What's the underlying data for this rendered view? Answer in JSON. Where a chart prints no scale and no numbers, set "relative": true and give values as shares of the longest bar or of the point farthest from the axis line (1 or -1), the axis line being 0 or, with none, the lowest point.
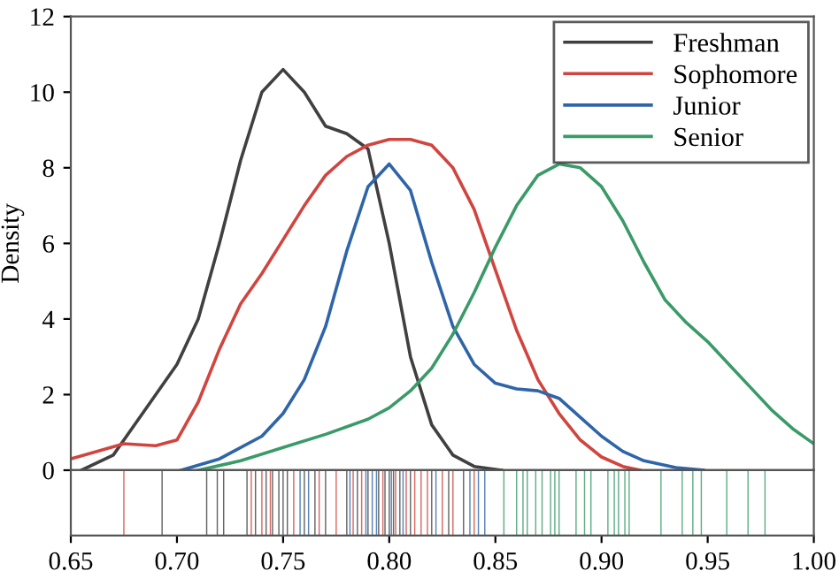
{
  "chart_data": [
    {
      "type": "line",
      "ylabel": "Density",
      "xlim": [
        0.65,
        1.0
      ],
      "ylim": [
        0,
        12
      ],
      "yticks": [
        0,
        2,
        4,
        6,
        8,
        10,
        12
      ],
      "tick_labels": "y",
      "legend": "top right",
      "grid": false,
      "series": [
        {
          "name": "Freshman",
          "color": "#404040",
          "x": [
            0.655,
            0.67,
            0.69,
            0.7,
            0.71,
            0.72,
            0.73,
            0.74,
            0.75,
            0.76,
            0.77,
            0.78,
            0.79,
            0.8,
            0.81,
            0.82,
            0.83,
            0.84,
            0.853
          ],
          "values": [
            0,
            0.4,
            2.0,
            2.8,
            4.0,
            6.0,
            8.2,
            10.0,
            10.6,
            10.0,
            9.1,
            8.9,
            8.5,
            6.0,
            3.0,
            1.2,
            0.4,
            0.1,
            0
          ]
        },
        {
          "name": "Sophomore",
          "color": "#d0453f",
          "x": [
            0.65,
            0.675,
            0.69,
            0.7,
            0.71,
            0.72,
            0.73,
            0.74,
            0.75,
            0.76,
            0.77,
            0.78,
            0.79,
            0.8,
            0.81,
            0.82,
            0.83,
            0.84,
            0.85,
            0.86,
            0.87,
            0.88,
            0.89,
            0.9,
            0.91,
            0.918
          ],
          "values": [
            0.3,
            0.7,
            0.65,
            0.8,
            1.8,
            3.2,
            4.4,
            5.2,
            6.1,
            7.0,
            7.8,
            8.3,
            8.6,
            8.75,
            8.75,
            8.6,
            8.0,
            6.9,
            5.3,
            3.7,
            2.4,
            1.5,
            0.8,
            0.35,
            0.1,
            0
          ]
        },
        {
          "name": "Junior",
          "color": "#2f65a8",
          "x": [
            0.702,
            0.72,
            0.74,
            0.75,
            0.76,
            0.77,
            0.78,
            0.79,
            0.8,
            0.81,
            0.82,
            0.83,
            0.84,
            0.85,
            0.86,
            0.87,
            0.88,
            0.89,
            0.9,
            0.91,
            0.92,
            0.935,
            0.948
          ],
          "values": [
            0,
            0.3,
            0.9,
            1.5,
            2.4,
            3.8,
            5.8,
            7.5,
            8.1,
            7.4,
            5.5,
            3.8,
            2.8,
            2.3,
            2.15,
            2.1,
            1.9,
            1.4,
            0.9,
            0.5,
            0.25,
            0.07,
            0
          ]
        },
        {
          "name": "Senior",
          "color": "#3a9a68",
          "x": [
            0.71,
            0.73,
            0.75,
            0.77,
            0.79,
            0.8,
            0.81,
            0.82,
            0.83,
            0.84,
            0.85,
            0.86,
            0.87,
            0.88,
            0.89,
            0.9,
            0.91,
            0.92,
            0.93,
            0.94,
            0.95,
            0.96,
            0.97,
            0.98,
            0.99,
            1.0
          ],
          "values": [
            0,
            0.25,
            0.6,
            0.95,
            1.35,
            1.65,
            2.1,
            2.7,
            3.6,
            4.7,
            5.9,
            7.0,
            7.8,
            8.1,
            8.0,
            7.5,
            6.6,
            5.5,
            4.5,
            3.9,
            3.4,
            2.8,
            2.2,
            1.6,
            1.1,
            0.7
          ]
        }
      ]
    },
    {
      "type": "bar",
      "relative": true,
      "xlim": [
        0.65,
        1.0
      ],
      "xticks": [
        0.65,
        {
          "value": 0.7,
          "label": "0.70"
        },
        0.75,
        {
          "value": 0.8,
          "label": "0.80"
        },
        0.85,
        {
          "value": 0.9,
          "label": "0.90"
        },
        0.95,
        {
          "value": 1.0,
          "label": "1.00"
        }
      ],
      "tick_labels": "x",
      "series": [
        {
          "color": "#404040",
          "x": [
            0.693,
            0.714,
            0.719,
            0.722,
            0.733,
            0.737,
            0.742,
            0.745,
            0.748,
            0.75,
            0.752,
            0.76,
            0.765,
            0.77,
            0.78,
            0.785,
            0.79,
            0.795,
            0.798,
            0.8,
            0.802,
            0.805,
            0.81,
            0.82,
            0.828,
            0.835
          ],
          "values": [
            1,
            1,
            1,
            1,
            1,
            1,
            1,
            1,
            1,
            1,
            1,
            1,
            1,
            1,
            1,
            1,
            1,
            1,
            1,
            1,
            1,
            1,
            1,
            1,
            1,
            1
          ]
        },
        {
          "color": "#d0453f",
          "x": [
            0.675,
            0.735,
            0.74,
            0.744,
            0.755,
            0.767,
            0.775,
            0.783,
            0.787,
            0.797,
            0.803,
            0.808,
            0.812,
            0.815,
            0.818,
            0.825,
            0.83,
            0.84
          ],
          "values": [
            1,
            1,
            1,
            1,
            1,
            1,
            1,
            1,
            1,
            1,
            1,
            1,
            1,
            1,
            1,
            1,
            1,
            1
          ]
        },
        {
          "color": "#2f65a8",
          "x": [
            0.758,
            0.762,
            0.7815,
            0.789,
            0.792,
            0.794,
            0.801,
            0.8065,
            0.822,
            0.838,
            0.842,
            0.845
          ],
          "values": [
            1,
            1,
            1,
            1,
            1,
            1,
            1,
            1,
            1,
            1,
            1,
            1
          ]
        },
        {
          "color": "#3a9a68",
          "x": [
            0.854,
            0.86,
            0.863,
            0.865,
            0.869,
            0.872,
            0.876,
            0.878,
            0.88,
            0.888,
            0.892,
            0.895,
            0.903,
            0.906,
            0.908,
            0.911,
            0.913,
            0.928,
            0.938,
            0.943,
            0.947,
            0.959,
            0.969,
            0.977
          ],
          "values": [
            1,
            1,
            1,
            1,
            1,
            1,
            1,
            1,
            1,
            1,
            1,
            1,
            1,
            1,
            1,
            1,
            1,
            1,
            1,
            1,
            1,
            1,
            1,
            1
          ]
        }
      ]
    }
  ]
}
